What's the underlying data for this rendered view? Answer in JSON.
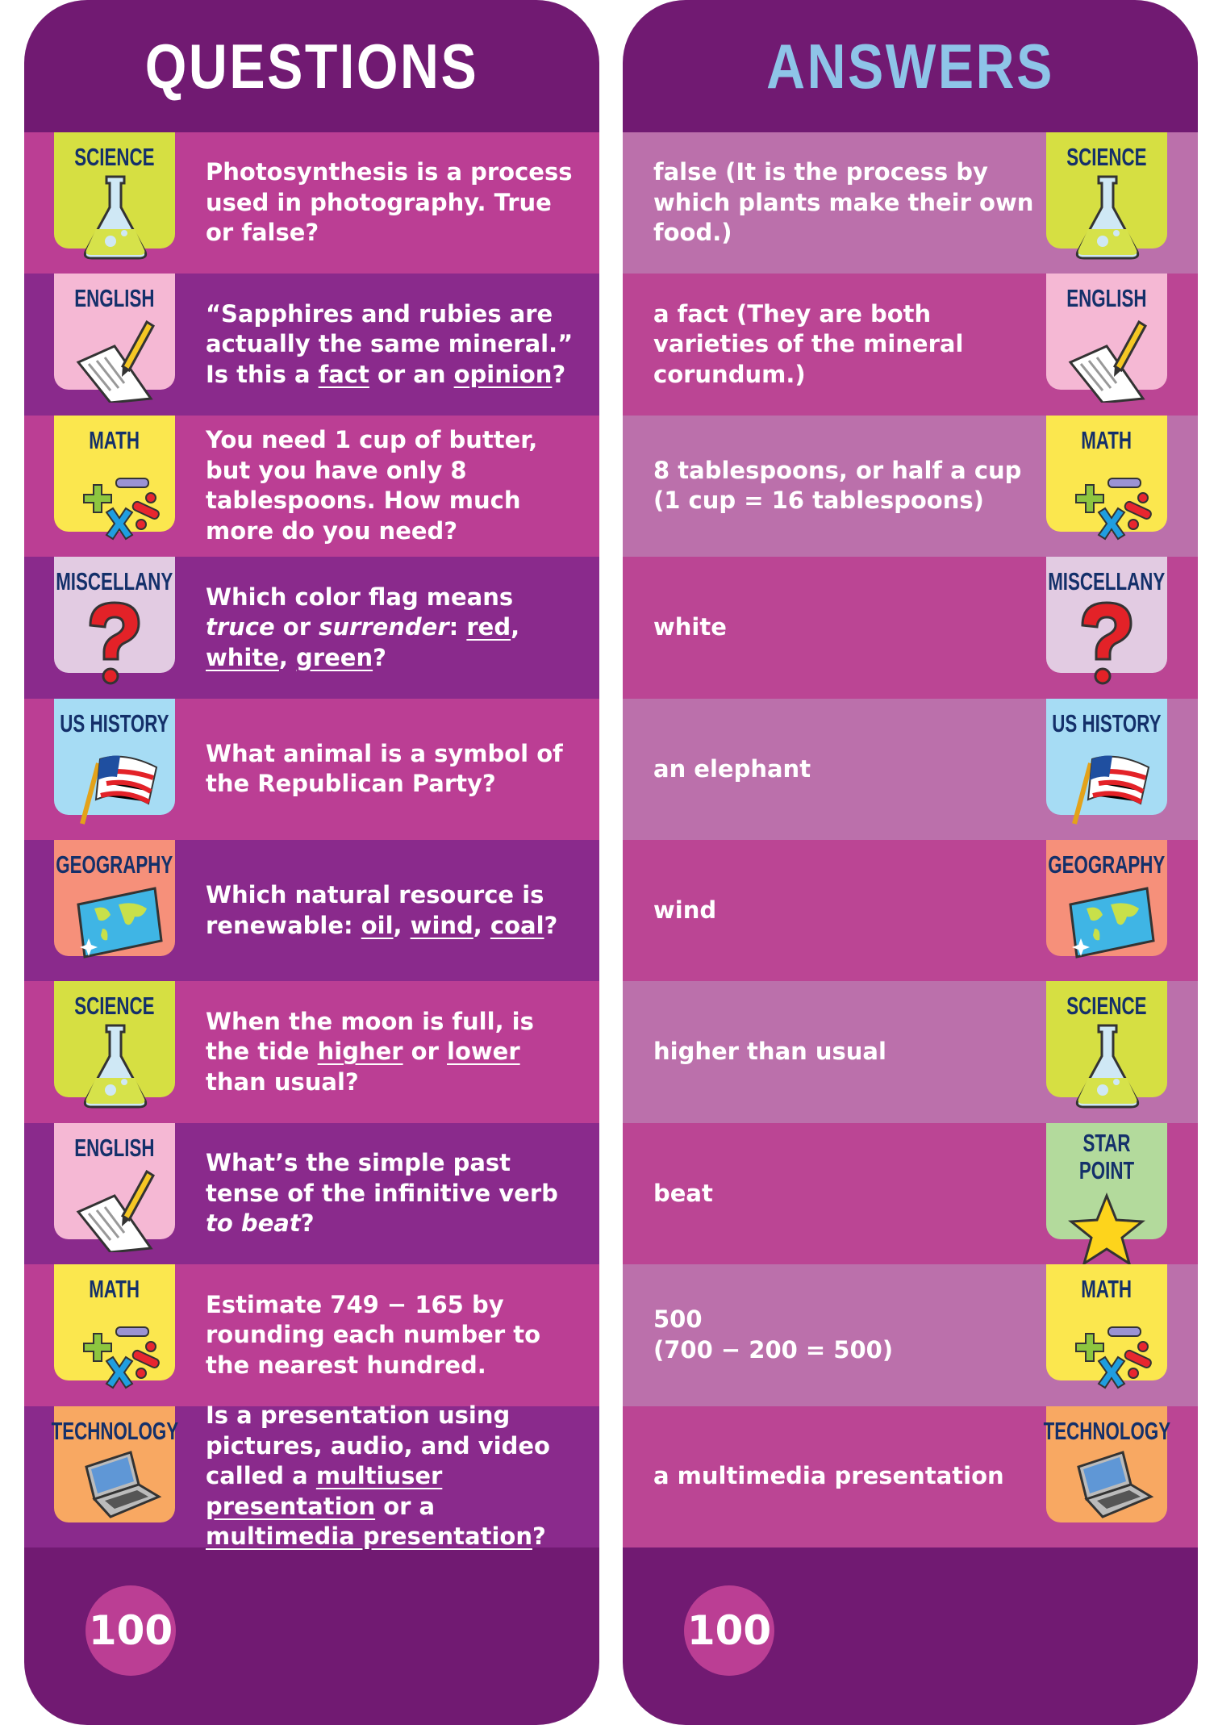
{
  "colors": {
    "header": "#711a72",
    "q_row_a": "#bb3e94",
    "q_row_b": "#8a2a8c",
    "a_row_a": "#bb70ab",
    "a_row_b": "#bb4594",
    "questions_title": "#ffffff",
    "answers_title": "#8ec4e8"
  },
  "categories": {
    "science": {
      "label": "SCIENCE",
      "color": "#d6df42",
      "icon": "flask-icon"
    },
    "english": {
      "label": "ENGLISH",
      "color": "#f5b8d4",
      "icon": "paper-pencil-icon"
    },
    "math": {
      "label": "MATH",
      "color": "#fbe74e",
      "icon": "math-symbols-icon"
    },
    "miscellany": {
      "label": "MISCELLANY",
      "color": "#e2cbe2",
      "icon": "question-mark-icon"
    },
    "ushistory": {
      "label": "US HISTORY",
      "color": "#a6dcf4",
      "icon": "us-flag-icon"
    },
    "geography": {
      "label": "GEOGRAPHY",
      "color": "#f6907a",
      "icon": "world-map-icon"
    },
    "technology": {
      "label": "TECHNOLOGY",
      "color": "#f8a862",
      "icon": "laptop-icon"
    },
    "starpoint": {
      "label": "STAR POINT",
      "color": "#b3da9c",
      "icon": "star-icon"
    }
  },
  "questions": {
    "title": "QUESTIONS",
    "score": "100",
    "rows": [
      {
        "cat": "science",
        "text": [
          {
            "t": "Photosynthesis is a process used in photography. True or false?"
          }
        ]
      },
      {
        "cat": "english",
        "text": [
          {
            "t": "“Sapphires and rubies are actually the same mineral.” Is this a "
          },
          {
            "t": "fact",
            "u": true
          },
          {
            "t": " or an "
          },
          {
            "t": "opinion",
            "u": true
          },
          {
            "t": "?"
          }
        ]
      },
      {
        "cat": "math",
        "text": [
          {
            "t": "You need 1 cup of butter, but you have only 8 tablespoons. How much more do you need?"
          }
        ]
      },
      {
        "cat": "miscellany",
        "text": [
          {
            "t": "Which color flag means "
          },
          {
            "t": "truce",
            "i": true
          },
          {
            "t": " or "
          },
          {
            "t": "surrender",
            "i": true
          },
          {
            "t": ": "
          },
          {
            "t": "red",
            "u": true
          },
          {
            "t": ", "
          },
          {
            "t": "white",
            "u": true
          },
          {
            "t": ", "
          },
          {
            "t": "green",
            "u": true
          },
          {
            "t": "?"
          }
        ]
      },
      {
        "cat": "ushistory",
        "text": [
          {
            "t": "What animal is a symbol of the Republican Party?"
          }
        ]
      },
      {
        "cat": "geography",
        "text": [
          {
            "t": "Which natural resource is renewable: "
          },
          {
            "t": "oil",
            "u": true
          },
          {
            "t": ", "
          },
          {
            "t": "wind",
            "u": true
          },
          {
            "t": ", "
          },
          {
            "t": "coal",
            "u": true
          },
          {
            "t": "?"
          }
        ]
      },
      {
        "cat": "science",
        "text": [
          {
            "t": "When the moon is full, is the tide "
          },
          {
            "t": "higher",
            "u": true
          },
          {
            "t": " or "
          },
          {
            "t": "lower",
            "u": true
          },
          {
            "t": " than usual?"
          }
        ]
      },
      {
        "cat": "english",
        "text": [
          {
            "t": "What’s the simple past tense of the infinitive verb "
          },
          {
            "t": "to beat",
            "i": true
          },
          {
            "t": "?"
          }
        ]
      },
      {
        "cat": "math",
        "text": [
          {
            "t": "Estimate 749 − 165 by rounding each number to the nearest hundred."
          }
        ]
      },
      {
        "cat": "technology",
        "text": [
          {
            "t": "Is a presentation using pictures, audio, and video called a "
          },
          {
            "t": "multiuser presentation",
            "u": true
          },
          {
            "t": " or a "
          },
          {
            "t": "multimedia presentation",
            "u": true
          },
          {
            "t": "?"
          }
        ]
      }
    ]
  },
  "answers": {
    "title": "ANSWERS",
    "score": "100",
    "rows": [
      {
        "cat": "science",
        "text": [
          {
            "t": "false (It is the process by which plants make their own food.)"
          }
        ]
      },
      {
        "cat": "english",
        "text": [
          {
            "t": "a fact (They are both varieties of the mineral corundum.)"
          }
        ]
      },
      {
        "cat": "math",
        "text": [
          {
            "t": "8 tablespoons, or half a cup (1 cup = 16 tablespoons)"
          }
        ]
      },
      {
        "cat": "miscellany",
        "text": [
          {
            "t": "white"
          }
        ]
      },
      {
        "cat": "ushistory",
        "text": [
          {
            "t": "an elephant"
          }
        ]
      },
      {
        "cat": "geography",
        "text": [
          {
            "t": "wind"
          }
        ]
      },
      {
        "cat": "science",
        "text": [
          {
            "t": "higher than usual"
          }
        ]
      },
      {
        "cat": "starpoint",
        "text": [
          {
            "t": "beat"
          }
        ]
      },
      {
        "cat": "math",
        "text": [
          {
            "t": "500\n(700 − 200 = 500)"
          }
        ]
      },
      {
        "cat": "technology",
        "text": [
          {
            "t": "a multimedia presentation"
          }
        ]
      }
    ]
  }
}
